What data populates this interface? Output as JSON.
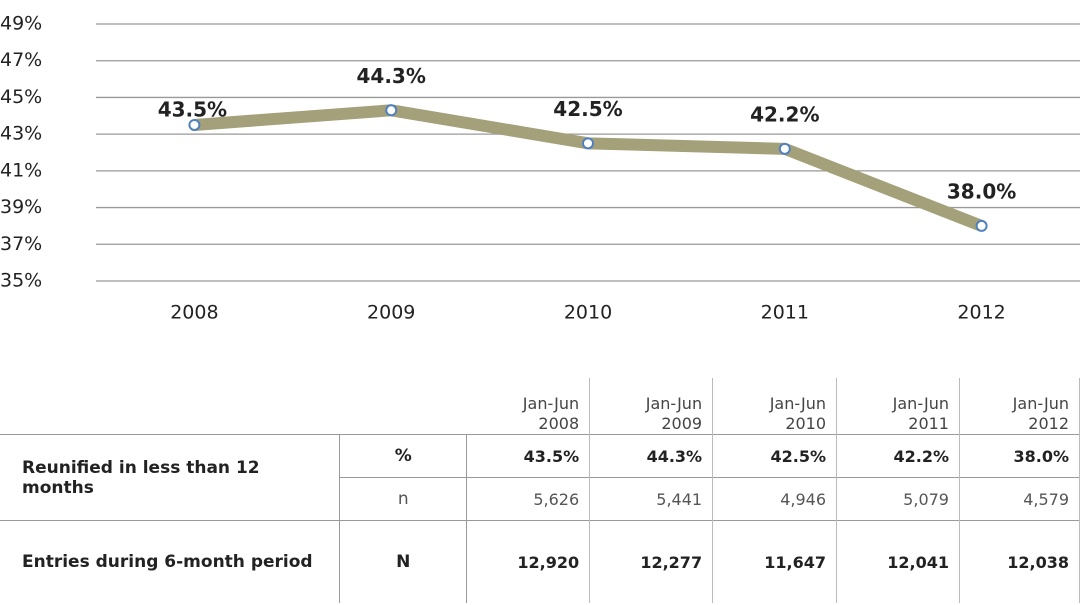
{
  "chart_data": {
    "type": "line",
    "categories": [
      "2008",
      "2009",
      "2010",
      "2011",
      "2012"
    ],
    "values": [
      43.5,
      44.3,
      42.5,
      42.2,
      38.0
    ],
    "value_labels": [
      "43.5%",
      "44.3%",
      "42.5%",
      "42.2%",
      "38.0%"
    ],
    "color": "#a3a07a",
    "marker_color": "#4f81bd",
    "ylim": [
      35,
      49
    ],
    "yticks": [
      {
        "value": 35,
        "label": "35%"
      },
      {
        "value": 37,
        "label": "37%"
      },
      {
        "value": 39,
        "label": "39%"
      },
      {
        "value": 41,
        "label": "41%"
      },
      {
        "value": 43,
        "label": "43%"
      },
      {
        "value": 45,
        "label": "45%"
      },
      {
        "value": 47,
        "label": "47%"
      },
      {
        "value": 49,
        "label": "49%"
      }
    ],
    "grid": true
  },
  "table": {
    "columns": [
      "Jan-Jun 2008",
      "Jan-Jun 2009",
      "Jan-Jun 2010",
      "Jan-Jun 2011",
      "Jan-Jun 2012"
    ],
    "rows": [
      {
        "label": "Reunified in less than 12 months",
        "measures": [
          {
            "name": "%",
            "cells": [
              "43.5%",
              "44.3%",
              "42.5%",
              "42.2%",
              "38.0%"
            ]
          },
          {
            "name": "n",
            "cells": [
              "5,626",
              "5,441",
              "4,946",
              "5,079",
              "4,579"
            ]
          }
        ]
      },
      {
        "label": "Entries during 6-month period",
        "measures": [
          {
            "name": "N",
            "cells": [
              "12,920",
              "12,277",
              "11,647",
              "12,041",
              "12,038"
            ]
          }
        ]
      }
    ]
  }
}
